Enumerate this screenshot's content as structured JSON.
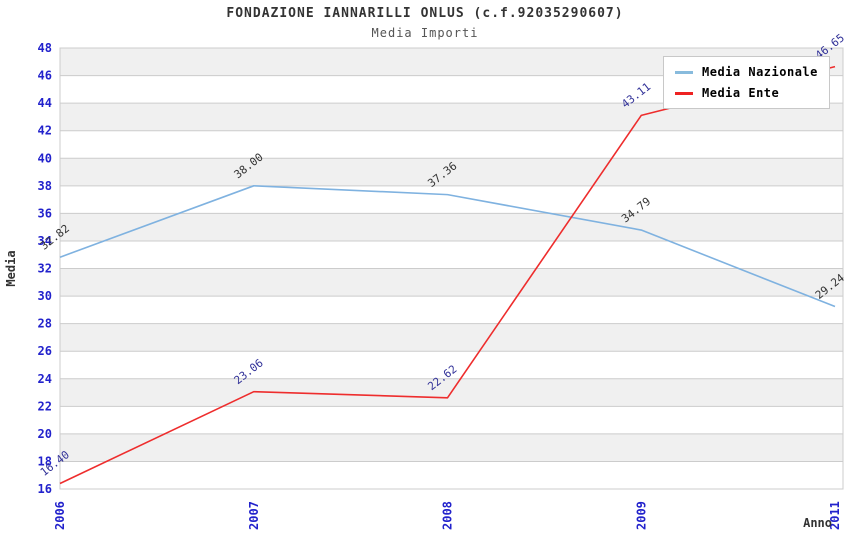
{
  "header": {
    "title": "FONDAZIONE IANNARILLI ONLUS (c.f.92035290607)",
    "subtitle": "Media Importi"
  },
  "legend": {
    "position": "top-right",
    "entries": [
      {
        "label": "Media Nazionale",
        "color": "#88BBDD"
      },
      {
        "label": "Media Ente",
        "color": "#EE2222"
      }
    ]
  },
  "chart_data": {
    "type": "line",
    "title": "FONDAZIONE IANNARILLI ONLUS (c.f.92035290607)",
    "subtitle": "Media Importi",
    "xlabel": "Anno",
    "ylabel": "Media",
    "categories": [
      "2006",
      "2007",
      "2008",
      "2009",
      "2011"
    ],
    "series": [
      {
        "name": "Media Nazionale",
        "color": "#7FB2E0",
        "label_color": "#333333",
        "values": [
          32.82,
          38.0,
          37.36,
          34.79,
          29.24
        ],
        "point_labels": [
          "32.82",
          "38.00",
          "37.36",
          "34.79",
          "29.24"
        ]
      },
      {
        "name": "Media Ente",
        "color": "#EE2D2D",
        "label_color": "#333399",
        "values": [
          16.4,
          23.06,
          22.62,
          43.11,
          46.65
        ],
        "point_labels": [
          "16.40",
          "23.06",
          "22.62",
          "43.11",
          "46.65"
        ]
      }
    ],
    "ylim": [
      16,
      48
    ],
    "ytick_step": 2,
    "yticks": [
      16,
      18,
      20,
      22,
      24,
      26,
      28,
      30,
      32,
      34,
      36,
      38,
      40,
      42,
      44,
      46,
      48
    ],
    "grid": {
      "horizontal": true,
      "vertical": false
    },
    "colors": {
      "band_gray": "#F0F0F0",
      "band_white": "#FFFFFF",
      "gridline": "#CCCCCC",
      "axis_tick_text": "#2222CC",
      "axis_label_text": "#333333"
    },
    "legend_position": "top-right"
  }
}
